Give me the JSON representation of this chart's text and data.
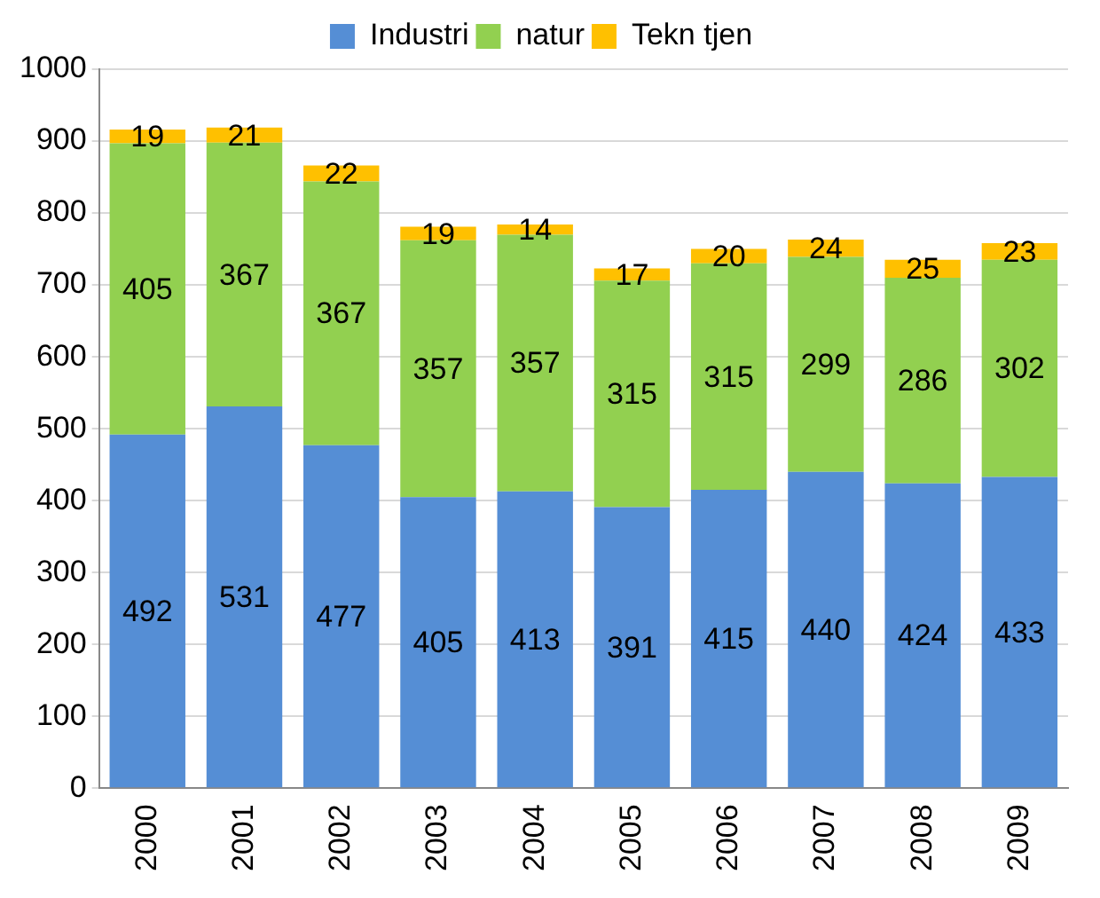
{
  "chart_data": {
    "type": "bar",
    "stacked": true,
    "categories": [
      "2000",
      "2001",
      "2002",
      "2003",
      "2004",
      "2005",
      "2006",
      "2007",
      "2008",
      "2009"
    ],
    "series": [
      {
        "name": "Industri",
        "color": "#558ed5",
        "values": [
          492,
          531,
          477,
          405,
          413,
          391,
          415,
          440,
          424,
          433
        ]
      },
      {
        "name": "natur",
        "color": "#92d050",
        "values": [
          405,
          367,
          367,
          357,
          357,
          315,
          315,
          299,
          286,
          302
        ]
      },
      {
        "name": "Tekn tjen",
        "color": "#ffc000",
        "values": [
          19,
          21,
          22,
          19,
          14,
          17,
          20,
          24,
          25,
          23
        ]
      }
    ],
    "ylim": [
      0,
      1000
    ],
    "yticks": [
      0,
      100,
      200,
      300,
      400,
      500,
      600,
      700,
      800,
      900,
      1000
    ],
    "grid": "y",
    "legend": "top",
    "data_labels": true
  }
}
